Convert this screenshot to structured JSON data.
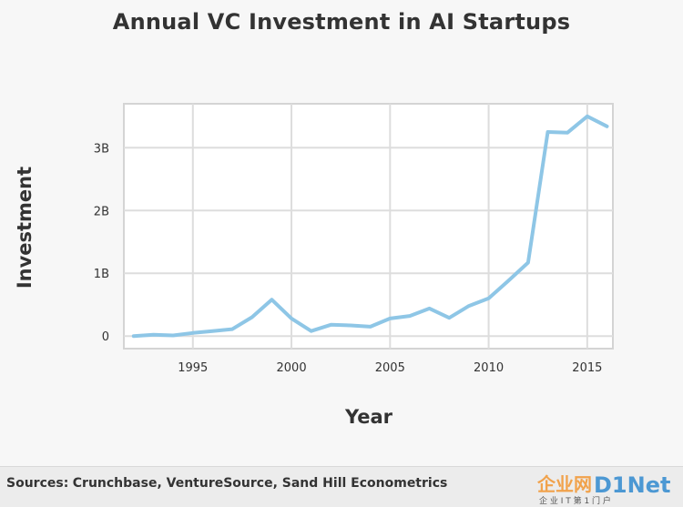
{
  "title": "Annual VC Investment in AI Startups",
  "footer": {
    "sources_label": "Sources:",
    "sources_text": "Crunchbase, VentureSource, Sand Hill Econometrics"
  },
  "watermark": {
    "text": "企业网D1Net",
    "subtext": "企 业 I T 第 1 门 户"
  },
  "chart_data": {
    "type": "line",
    "title": "Annual VC Investment in AI Startups",
    "xlabel": "Year",
    "ylabel": "Investment",
    "x": [
      1992,
      1993,
      1994,
      1995,
      1996,
      1997,
      1998,
      1999,
      2000,
      2001,
      2002,
      2003,
      2004,
      2005,
      2006,
      2007,
      2008,
      2009,
      2010,
      2011,
      2012,
      2013,
      2014,
      2015,
      2016
    ],
    "series": [
      {
        "values": [
          0.0,
          0.02,
          0.01,
          0.05,
          0.08,
          0.11,
          0.3,
          0.58,
          0.28,
          0.08,
          0.18,
          0.17,
          0.15,
          0.28,
          0.32,
          0.44,
          0.29,
          0.48,
          0.6,
          0.88,
          1.17,
          3.25,
          3.24,
          3.5,
          3.34
        ],
        "color": "#8ec6e6"
      }
    ],
    "xlim": [
      1991.5,
      2016.3
    ],
    "ylim": [
      -0.2,
      3.7
    ],
    "x_ticks": [
      1995,
      2000,
      2005,
      2010,
      2015
    ],
    "x_tick_labels": [
      "1995",
      "2000",
      "2005",
      "2010",
      "2015"
    ],
    "y_ticks": [
      0,
      1,
      2,
      3
    ],
    "y_tick_labels": [
      "0",
      "1B",
      "2B",
      "3B"
    ],
    "grid": true,
    "legend": "none"
  }
}
